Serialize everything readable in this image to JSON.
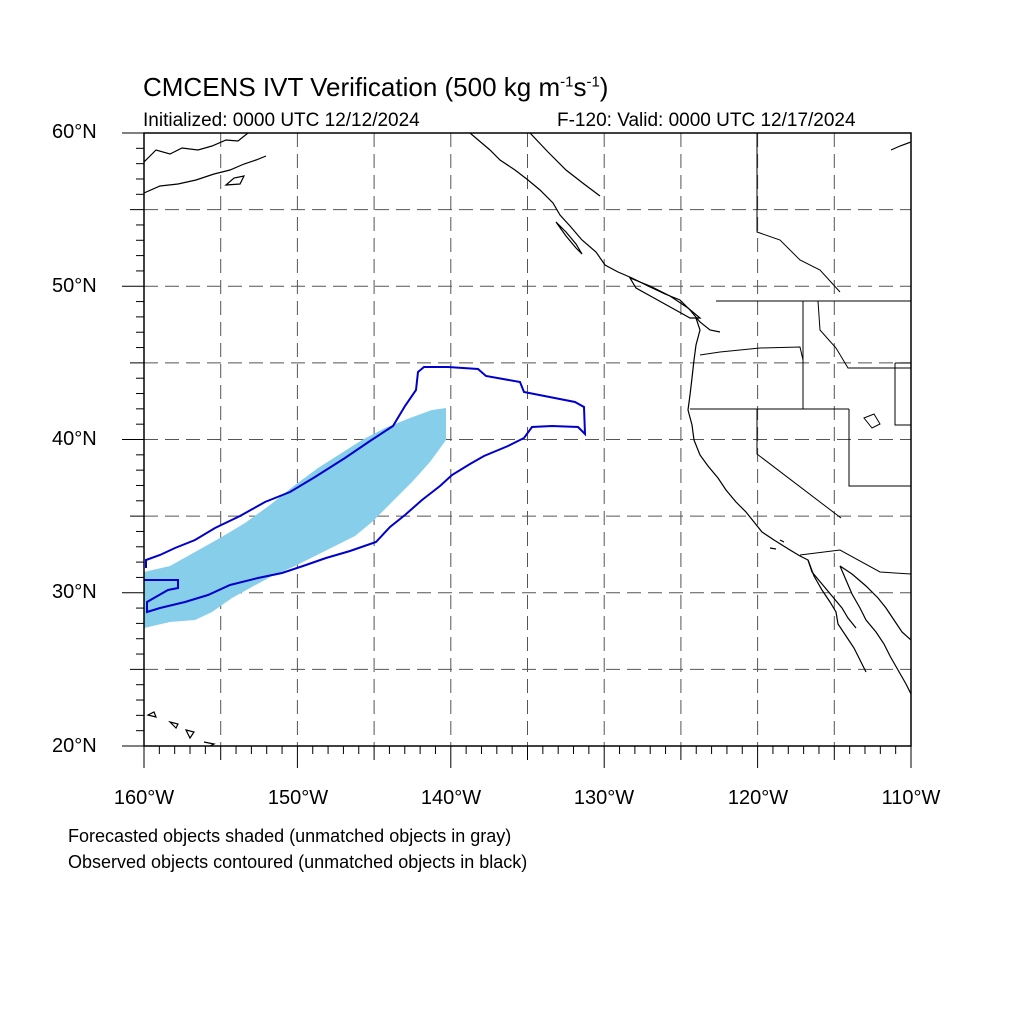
{
  "title": {
    "main": "CMCENS IVT Verification (500 kg m",
    "sup1": "-1",
    "mid": "s",
    "sup2": "-1",
    "end": ")"
  },
  "initialized": "Initialized: 0000 UTC 12/12/2024",
  "valid": "F-120: Valid: 0000 UTC 12/17/2024",
  "lat_labels": [
    "60°N",
    "50°N",
    "40°N",
    "30°N",
    "20°N"
  ],
  "lon_labels": [
    "160°W",
    "150°W",
    "140°W",
    "130°W",
    "120°W",
    "110°W"
  ],
  "legend": [
    "Forecasted objects shaded (unmatched objects in gray)",
    "Observed objects contoured (unmatched objects in black)"
  ],
  "colors": {
    "forecast_fill": "#87CEEB",
    "observed_contour": "#0000CC",
    "coastline": "#000000",
    "grid": "#555555"
  },
  "map_extent": {
    "lon_min": -160,
    "lon_max": -110,
    "lat_min": 20,
    "lat_max": 60
  }
}
